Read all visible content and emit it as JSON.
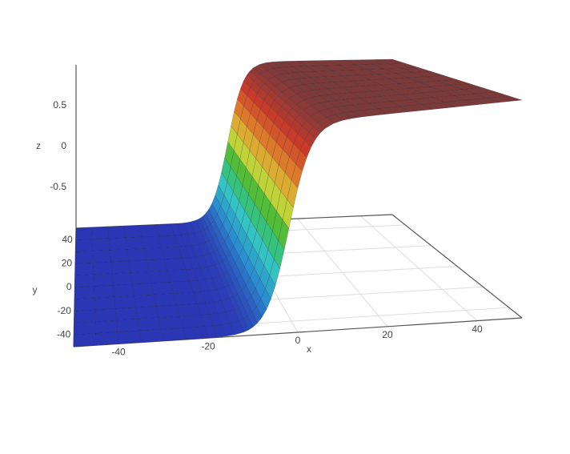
{
  "chart_data": {
    "type": "surface",
    "x_label": "x",
    "y_label": "y",
    "z_label": "z",
    "xlim": [
      -50,
      50
    ],
    "ylim": [
      -50,
      50
    ],
    "zlim": [
      -1,
      1
    ],
    "xticks": [
      -40,
      -20,
      0,
      20,
      40
    ],
    "yticks": [
      -40,
      -20,
      0,
      20,
      40
    ],
    "zticks": [
      -0.5,
      0,
      0.5
    ],
    "grid": true,
    "colorscale": [
      "#2b36b5",
      "#2a8fd0",
      "#35c9c0",
      "#38b838",
      "#d8d838",
      "#e0802a",
      "#c83a2a",
      "#7a3a3a"
    ],
    "x": [
      -50,
      -45,
      -40,
      -35,
      -30,
      -25,
      -20,
      -18,
      -16,
      -14,
      -12,
      -11,
      -10,
      -9,
      -8,
      -7,
      -6,
      -5,
      -4,
      -3,
      -2,
      -1,
      0,
      1,
      2,
      3,
      4,
      5,
      6,
      8,
      10,
      12,
      14,
      16,
      20,
      25,
      30,
      35,
      40,
      45,
      50
    ],
    "values": [
      -1,
      -1,
      -1,
      -1,
      -1,
      -1,
      -0.999,
      -0.997,
      -0.993,
      -0.984,
      -0.964,
      -0.947,
      -0.922,
      -0.885,
      -0.834,
      -0.762,
      -0.664,
      -0.537,
      -0.38,
      -0.197,
      0,
      0.197,
      0.38,
      0.537,
      0.664,
      0.762,
      0.834,
      0.885,
      0.922,
      0.964,
      0.984,
      0.993,
      0.997,
      0.999,
      1,
      1,
      1,
      1,
      1,
      1,
      1
    ]
  }
}
